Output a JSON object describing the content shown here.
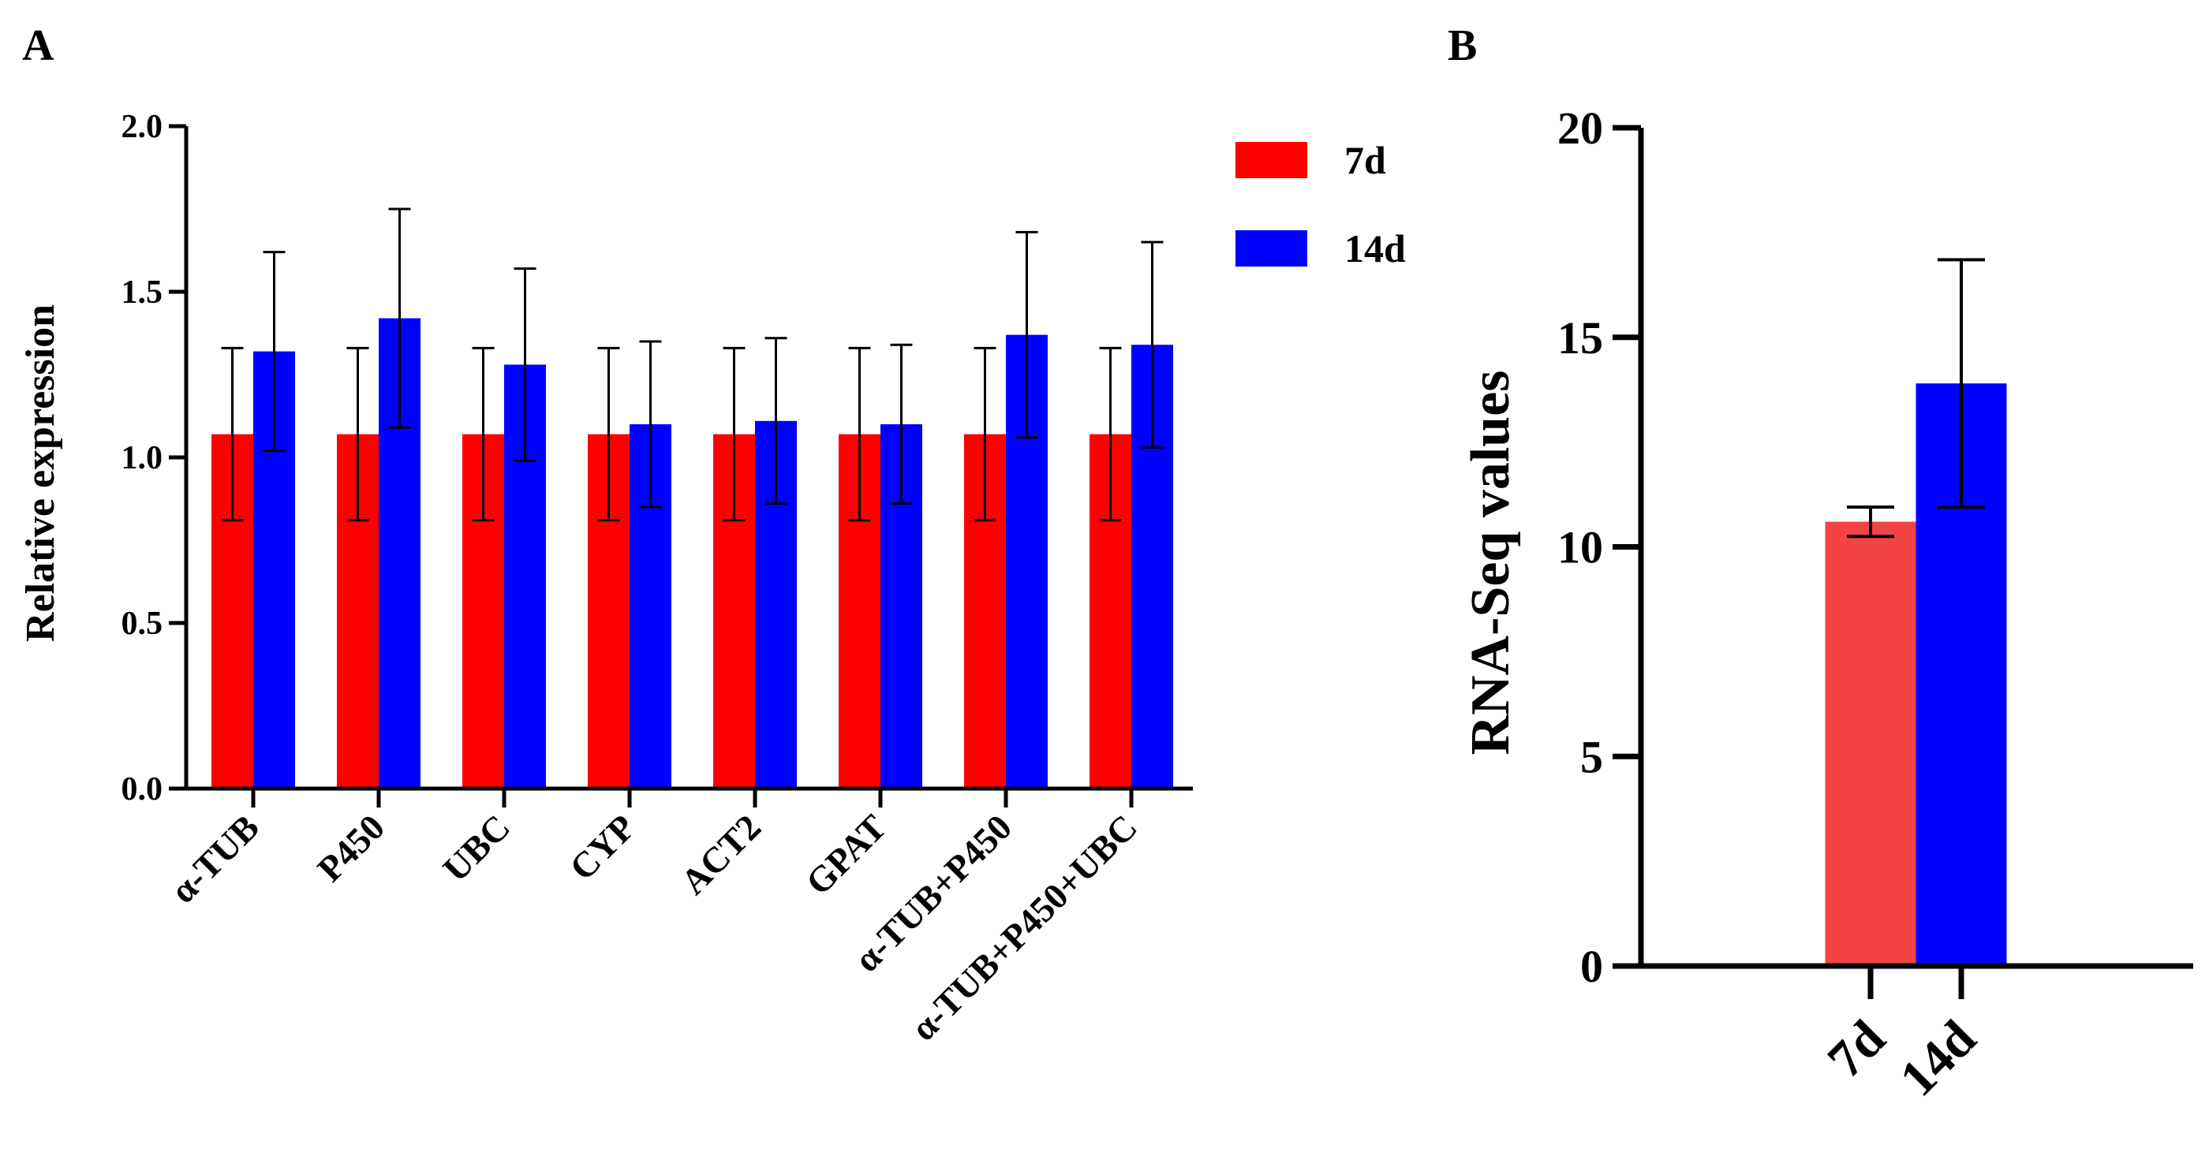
{
  "panels": [
    {
      "label": "A",
      "chart_data": {
        "type": "bar",
        "title": "",
        "xlabel": "",
        "ylabel": "Relative expression",
        "ylim": [
          0,
          2.0
        ],
        "yticks": [
          0.0,
          0.5,
          1.0,
          1.5,
          2.0
        ],
        "ytick_labels": [
          "0.0",
          "0.5",
          "1.0",
          "1.5",
          "2.0"
        ],
        "categories": [
          "α-TUB",
          "P450",
          "UBC",
          "CYP",
          "ACT2",
          "GPAT",
          "α-TUB+P450",
          "α-TUB+P450+UBC"
        ],
        "series": [
          {
            "name": "7d",
            "color": "#ff0000",
            "values": [
              1.07,
              1.07,
              1.07,
              1.07,
              1.07,
              1.07,
              1.07,
              1.07
            ],
            "error": [
              0.26,
              0.26,
              0.26,
              0.26,
              0.26,
              0.26,
              0.26,
              0.26
            ]
          },
          {
            "name": "14d",
            "color": "#0000ff",
            "values": [
              1.32,
              1.42,
              1.28,
              1.1,
              1.11,
              1.1,
              1.37,
              1.34
            ],
            "error": [
              0.3,
              0.33,
              0.29,
              0.25,
              0.25,
              0.24,
              0.31,
              0.31
            ]
          }
        ],
        "legend": {
          "placement": "top-right-outside",
          "entries": [
            "7d",
            "14d"
          ]
        }
      }
    },
    {
      "label": "B",
      "chart_data": {
        "type": "bar",
        "title": "",
        "xlabel": "",
        "ylabel": "RNA-Seq values",
        "ylim": [
          0,
          20
        ],
        "yticks": [
          0,
          5,
          10,
          15,
          20
        ],
        "ytick_labels": [
          "0",
          "5",
          "10",
          "15",
          "20"
        ],
        "categories": [
          "7d",
          "14d"
        ],
        "values": [
          10.6,
          13.9
        ],
        "error": [
          0.35,
          2.95
        ],
        "colors": [
          "#f24444",
          "#0000ff"
        ]
      }
    }
  ]
}
